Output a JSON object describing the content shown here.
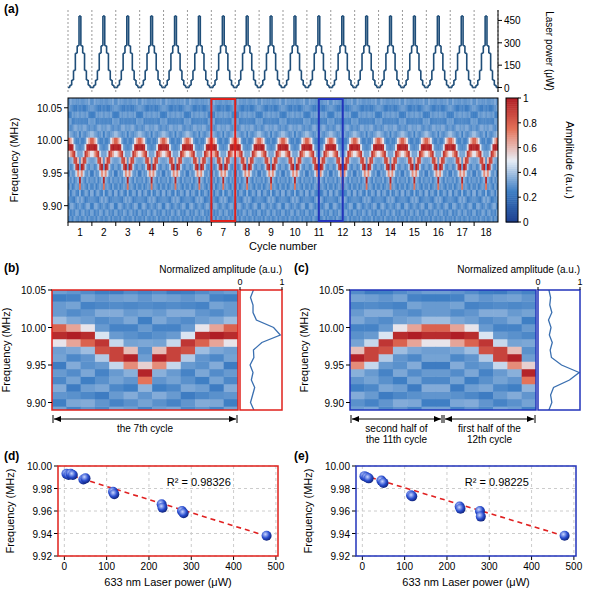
{
  "chart_data": [
    {
      "type": "heatmap",
      "title": "(a)",
      "x_label": "Cycle number",
      "xlim": [
        0.5,
        18.5
      ],
      "xticks": [
        1,
        2,
        3,
        4,
        5,
        6,
        7,
        8,
        9,
        10,
        11,
        12,
        13,
        14,
        15,
        16,
        17,
        18
      ],
      "y_label": "Frequency (MHz)",
      "ylim": [
        9.875,
        10.065
      ],
      "yticks": [
        {
          "value": 9.9,
          "label": "9.90"
        },
        9.95,
        {
          "value": 10,
          "label": "10.00"
        },
        10.05
      ],
      "rows": [
        9.88,
        9.89,
        9.9,
        9.91,
        9.92,
        9.93,
        9.94,
        9.95,
        9.96,
        9.97,
        9.98,
        9.99,
        10,
        10.01,
        10.02,
        10.03,
        10.04,
        10.05,
        10.06
      ],
      "cells": [
        [
          0.28,
          0.33,
          0.25,
          0.3,
          0.35,
          0.27,
          0.31,
          0.24,
          0.33,
          0.32,
          0.52,
          0.96,
          0.8,
          0.39,
          0.31,
          0.31,
          0.25,
          0.32,
          0.29
        ],
        [
          0.31,
          0.26,
          0.34,
          0.29,
          0.24,
          0.33,
          0.28,
          0.35,
          0.27,
          0.34,
          0.65,
          1.0,
          0.65,
          0.34,
          0.28,
          0.33,
          0.26,
          0.3,
          0.35
        ],
        [
          0.26,
          0.3,
          0.35,
          0.27,
          0.32,
          0.25,
          0.34,
          0.29,
          0.3,
          0.39,
          0.8,
          0.96,
          0.52,
          0.32,
          0.3,
          0.26,
          0.33,
          0.28,
          0.31
        ],
        [
          0.33,
          0.27,
          0.3,
          0.24,
          0.34,
          0.29,
          0.26,
          0.31,
          0.42,
          0.85,
          0.93,
          0.48,
          0.31,
          0.28,
          0.35,
          0.27,
          0.3,
          0.25,
          0.32
        ],
        [
          0.29,
          0.34,
          0.26,
          0.31,
          0.27,
          0.33,
          0.31,
          0.45,
          0.89,
          0.89,
          0.45,
          0.31,
          0.26,
          0.3,
          0.35,
          0.28,
          0.32,
          0.24,
          0.3
        ],
        [
          0.27,
          0.32,
          0.29,
          0.35,
          0.25,
          0.3,
          0.36,
          0.7,
          0.99,
          0.6,
          0.33,
          0.29,
          0.26,
          0.34,
          0.31,
          0.27,
          0.33,
          0.28,
          0.3
        ],
        [
          0.31,
          0.26,
          0.33,
          0.3,
          0.37,
          0.75,
          0.98,
          0.56,
          0.32,
          0.29,
          0.34,
          0.27,
          0.31,
          0.25,
          0.33,
          0.28,
          0.3,
          0.26,
          0.32
        ],
        [
          0.27,
          0.32,
          0.29,
          0.35,
          0.25,
          0.3,
          0.36,
          0.7,
          0.99,
          0.6,
          0.33,
          0.29,
          0.26,
          0.34,
          0.31,
          0.27,
          0.33,
          0.28,
          0.3
        ],
        [
          0.29,
          0.34,
          0.26,
          0.31,
          0.27,
          0.33,
          0.31,
          0.45,
          0.89,
          0.89,
          0.45,
          0.31,
          0.26,
          0.3,
          0.35,
          0.28,
          0.32,
          0.24,
          0.3
        ],
        [
          0.33,
          0.27,
          0.3,
          0.24,
          0.34,
          0.29,
          0.26,
          0.31,
          0.42,
          0.85,
          0.93,
          0.48,
          0.31,
          0.28,
          0.35,
          0.27,
          0.3,
          0.25,
          0.32
        ],
        [
          0.26,
          0.3,
          0.35,
          0.27,
          0.32,
          0.25,
          0.34,
          0.29,
          0.3,
          0.39,
          0.8,
          0.96,
          0.52,
          0.32,
          0.3,
          0.26,
          0.33,
          0.28,
          0.31
        ],
        [
          0.31,
          0.26,
          0.34,
          0.29,
          0.24,
          0.33,
          0.28,
          0.35,
          0.27,
          0.34,
          0.65,
          1.0,
          0.65,
          0.34,
          0.28,
          0.33,
          0.26,
          0.3,
          0.35
        ],
        [
          0.28,
          0.33,
          0.25,
          0.3,
          0.35,
          0.27,
          0.31,
          0.24,
          0.33,
          0.32,
          0.52,
          0.96,
          0.8,
          0.39,
          0.31,
          0.31,
          0.25,
          0.32,
          0.29
        ]
      ],
      "colorbar": {
        "label": "Amplitude (a.u.)",
        "range": [
          0,
          1
        ],
        "ticks": [
          0,
          0.2,
          0.4,
          0.6,
          0.8,
          1
        ]
      },
      "power": {
        "label": "Laser power (μW)",
        "values": [
          0,
          15,
          50,
          115,
          230,
          280,
          480,
          280,
          230,
          115,
          50,
          15,
          0
        ],
        "ylim": [
          -30,
          520
        ],
        "yticks": [
          0,
          150,
          300,
          450
        ],
        "color": "#1f4e79"
      }
    },
    {
      "type": "heatmap",
      "title": "(b)",
      "annotations": [
        "the 7th cycle"
      ],
      "y_label": "Frequency (MHz)",
      "xlim": [
        6.5,
        7.5
      ],
      "ylim": [
        9.89,
        10.05
      ],
      "yticks": [
        {
          "value": 9.9,
          "label": "9.90"
        },
        9.95,
        {
          "value": 10,
          "label": "10.00"
        },
        10.05
      ],
      "rows": [
        9.88,
        9.89,
        9.9,
        9.91,
        9.92,
        9.93,
        9.94,
        9.95,
        9.96,
        9.97,
        9.98,
        9.99,
        10,
        10.01,
        10.02,
        10.03,
        10.04,
        10.05,
        10.06
      ],
      "cells": [
        [
          0.28,
          0.33,
          0.25,
          0.3,
          0.35,
          0.27,
          0.31,
          0.24,
          0.33,
          0.32,
          0.52,
          0.96,
          0.8,
          0.39,
          0.31,
          0.31,
          0.25,
          0.32,
          0.29
        ],
        [
          0.31,
          0.26,
          0.34,
          0.29,
          0.24,
          0.33,
          0.28,
          0.35,
          0.27,
          0.34,
          0.65,
          1.0,
          0.65,
          0.34,
          0.28,
          0.33,
          0.26,
          0.3,
          0.35
        ],
        [
          0.26,
          0.3,
          0.35,
          0.27,
          0.32,
          0.25,
          0.34,
          0.29,
          0.3,
          0.39,
          0.8,
          0.96,
          0.52,
          0.32,
          0.3,
          0.26,
          0.33,
          0.28,
          0.31
        ],
        [
          0.33,
          0.27,
          0.3,
          0.24,
          0.34,
          0.29,
          0.26,
          0.31,
          0.42,
          0.85,
          0.93,
          0.48,
          0.31,
          0.28,
          0.35,
          0.27,
          0.3,
          0.25,
          0.32
        ],
        [
          0.29,
          0.34,
          0.26,
          0.31,
          0.27,
          0.33,
          0.31,
          0.45,
          0.89,
          0.89,
          0.45,
          0.31,
          0.26,
          0.3,
          0.35,
          0.28,
          0.32,
          0.24,
          0.3
        ],
        [
          0.27,
          0.32,
          0.29,
          0.35,
          0.25,
          0.3,
          0.36,
          0.7,
          0.99,
          0.6,
          0.33,
          0.29,
          0.26,
          0.34,
          0.31,
          0.27,
          0.33,
          0.28,
          0.3
        ],
        [
          0.31,
          0.26,
          0.33,
          0.3,
          0.37,
          0.75,
          0.98,
          0.56,
          0.32,
          0.29,
          0.34,
          0.27,
          0.31,
          0.25,
          0.33,
          0.28,
          0.3,
          0.26,
          0.32
        ],
        [
          0.27,
          0.32,
          0.29,
          0.35,
          0.25,
          0.3,
          0.36,
          0.7,
          0.99,
          0.6,
          0.33,
          0.29,
          0.26,
          0.34,
          0.31,
          0.27,
          0.33,
          0.28,
          0.3
        ],
        [
          0.29,
          0.34,
          0.26,
          0.31,
          0.27,
          0.33,
          0.31,
          0.45,
          0.89,
          0.89,
          0.45,
          0.31,
          0.26,
          0.3,
          0.35,
          0.28,
          0.32,
          0.24,
          0.3
        ],
        [
          0.33,
          0.27,
          0.3,
          0.24,
          0.34,
          0.29,
          0.26,
          0.31,
          0.42,
          0.85,
          0.93,
          0.48,
          0.31,
          0.28,
          0.35,
          0.27,
          0.3,
          0.25,
          0.32
        ],
        [
          0.26,
          0.3,
          0.35,
          0.27,
          0.32,
          0.25,
          0.34,
          0.29,
          0.3,
          0.39,
          0.8,
          0.96,
          0.52,
          0.32,
          0.3,
          0.26,
          0.33,
          0.28,
          0.31
        ],
        [
          0.31,
          0.26,
          0.34,
          0.29,
          0.24,
          0.33,
          0.28,
          0.35,
          0.27,
          0.34,
          0.65,
          1.0,
          0.65,
          0.34,
          0.28,
          0.33,
          0.26,
          0.3,
          0.35
        ],
        [
          0.28,
          0.33,
          0.25,
          0.3,
          0.35,
          0.27,
          0.31,
          0.24,
          0.33,
          0.32,
          0.52,
          0.96,
          0.8,
          0.39,
          0.31,
          0.31,
          0.25,
          0.32,
          0.29
        ]
      ],
      "profile": {
        "label": "Normalized amplitude (a.u.)",
        "range": [
          0,
          1
        ],
        "ticks": [
          0,
          1
        ]
      }
    },
    {
      "type": "heatmap",
      "title": "(c)",
      "annotations": [
        "second half of the 11th cycle",
        "first half of the 12th cycle"
      ],
      "y_label": "Frequency (MHz)",
      "xlim": [
        11,
        12
      ],
      "ylim": [
        9.89,
        10.05
      ],
      "yticks": [
        {
          "value": 9.9,
          "label": "9.90"
        },
        9.95,
        {
          "value": 10,
          "label": "10.00"
        },
        10.05
      ],
      "rows": [
        9.88,
        9.89,
        9.9,
        9.91,
        9.92,
        9.93,
        9.94,
        9.95,
        9.96,
        9.97,
        9.98,
        9.99,
        10,
        10.01,
        10.02,
        10.03,
        10.04,
        10.05,
        10.06
      ],
      "cells": [
        [
          0.27,
          0.32,
          0.29,
          0.35,
          0.25,
          0.3,
          0.36,
          0.7,
          0.99,
          0.6,
          0.33,
          0.29,
          0.26,
          0.34,
          0.31,
          0.27,
          0.33,
          0.28,
          0.3
        ],
        [
          0.29,
          0.34,
          0.26,
          0.31,
          0.27,
          0.33,
          0.31,
          0.45,
          0.89,
          0.89,
          0.45,
          0.31,
          0.26,
          0.3,
          0.35,
          0.28,
          0.32,
          0.24,
          0.3
        ],
        [
          0.33,
          0.27,
          0.3,
          0.24,
          0.34,
          0.29,
          0.26,
          0.31,
          0.42,
          0.85,
          0.93,
          0.48,
          0.31,
          0.28,
          0.35,
          0.27,
          0.3,
          0.25,
          0.32
        ],
        [
          0.26,
          0.3,
          0.35,
          0.27,
          0.32,
          0.25,
          0.34,
          0.29,
          0.3,
          0.39,
          0.8,
          0.96,
          0.52,
          0.32,
          0.3,
          0.26,
          0.33,
          0.28,
          0.31
        ],
        [
          0.31,
          0.26,
          0.34,
          0.29,
          0.24,
          0.33,
          0.28,
          0.35,
          0.27,
          0.34,
          0.65,
          1.0,
          0.65,
          0.34,
          0.28,
          0.33,
          0.26,
          0.3,
          0.35
        ],
        [
          0.28,
          0.33,
          0.25,
          0.3,
          0.35,
          0.27,
          0.31,
          0.24,
          0.33,
          0.32,
          0.52,
          0.96,
          0.8,
          0.39,
          0.31,
          0.31,
          0.25,
          0.32,
          0.29
        ],
        [
          0.28,
          0.33,
          0.25,
          0.3,
          0.35,
          0.27,
          0.31,
          0.24,
          0.33,
          0.32,
          0.52,
          0.96,
          0.8,
          0.39,
          0.31,
          0.31,
          0.25,
          0.32,
          0.29
        ],
        [
          0.31,
          0.26,
          0.34,
          0.29,
          0.24,
          0.33,
          0.28,
          0.35,
          0.27,
          0.34,
          0.65,
          1.0,
          0.65,
          0.34,
          0.28,
          0.33,
          0.26,
          0.3,
          0.35
        ],
        [
          0.26,
          0.3,
          0.35,
          0.27,
          0.32,
          0.25,
          0.34,
          0.29,
          0.3,
          0.39,
          0.8,
          0.96,
          0.52,
          0.32,
          0.3,
          0.26,
          0.33,
          0.28,
          0.31
        ],
        [
          0.33,
          0.27,
          0.3,
          0.24,
          0.34,
          0.29,
          0.26,
          0.31,
          0.42,
          0.85,
          0.93,
          0.48,
          0.31,
          0.28,
          0.35,
          0.27,
          0.3,
          0.25,
          0.32
        ],
        [
          0.29,
          0.34,
          0.26,
          0.31,
          0.27,
          0.33,
          0.31,
          0.45,
          0.89,
          0.89,
          0.45,
          0.31,
          0.26,
          0.3,
          0.35,
          0.28,
          0.32,
          0.24,
          0.3
        ],
        [
          0.27,
          0.32,
          0.29,
          0.35,
          0.25,
          0.3,
          0.36,
          0.7,
          0.99,
          0.6,
          0.33,
          0.29,
          0.26,
          0.34,
          0.31,
          0.27,
          0.33,
          0.28,
          0.3
        ],
        [
          0.31,
          0.26,
          0.33,
          0.3,
          0.37,
          0.75,
          0.98,
          0.56,
          0.32,
          0.29,
          0.34,
          0.27,
          0.31,
          0.25,
          0.33,
          0.28,
          0.3,
          0.26,
          0.32
        ]
      ],
      "profile": {
        "label": "Normalized amplitude (a.u.)",
        "range": [
          0,
          1
        ],
        "ticks": [
          0,
          1
        ]
      }
    },
    {
      "type": "scatter",
      "title": "(d)",
      "annotation": "R² = 0.98326",
      "x_label": "633 nm Laser power (μW)",
      "y_label": "Frequency (MHz)",
      "xlim": [
        -15,
        505
      ],
      "xticks": [
        0,
        100,
        200,
        300,
        400,
        500
      ],
      "ylim": [
        9.92,
        10.0
      ],
      "yticks": [
        9.92,
        9.94,
        9.96,
        9.98,
        {
          "value": 10,
          "label": "10.00"
        }
      ],
      "grid": true,
      "x": [
        5,
        10,
        15,
        20,
        45,
        50,
        115,
        118,
        230,
        232,
        278,
        282,
        478
      ],
      "values": [
        9.993,
        9.992,
        9.993,
        9.992,
        9.988,
        9.989,
        9.977,
        9.975,
        9.966,
        9.963,
        9.96,
        9.958,
        9.938
      ],
      "color": "#2b4fd0",
      "marker": "circle",
      "fit": {
        "x": [
          0,
          480
        ],
        "values": [
          9.9935,
          9.9375
        ],
        "color": "#e02020",
        "line_style": "dashed"
      }
    },
    {
      "type": "scatter",
      "title": "(e)",
      "annotation": "R² = 0.98225",
      "x_label": "633 nm Laser power (μW)",
      "y_label": "Frequency (MHz)",
      "xlim": [
        -15,
        505
      ],
      "xticks": [
        0,
        100,
        200,
        300,
        400,
        500
      ],
      "ylim": [
        9.92,
        10.0
      ],
      "yticks": [
        9.92,
        9.94,
        9.96,
        9.98,
        {
          "value": 10,
          "label": "10.00"
        }
      ],
      "grid": true,
      "x": [
        5,
        10,
        15,
        45,
        50,
        115,
        118,
        230,
        232,
        278,
        280,
        478
      ],
      "values": [
        9.991,
        9.99,
        9.989,
        9.987,
        9.985,
        9.974,
        9.973,
        9.964,
        9.962,
        9.96,
        9.955,
        9.938
      ],
      "color": "#2b4fd0",
      "marker": "circle",
      "fit": {
        "x": [
          0,
          480
        ],
        "values": [
          9.992,
          9.9375
        ],
        "color": "#e02020",
        "line_style": "dashed"
      }
    }
  ]
}
